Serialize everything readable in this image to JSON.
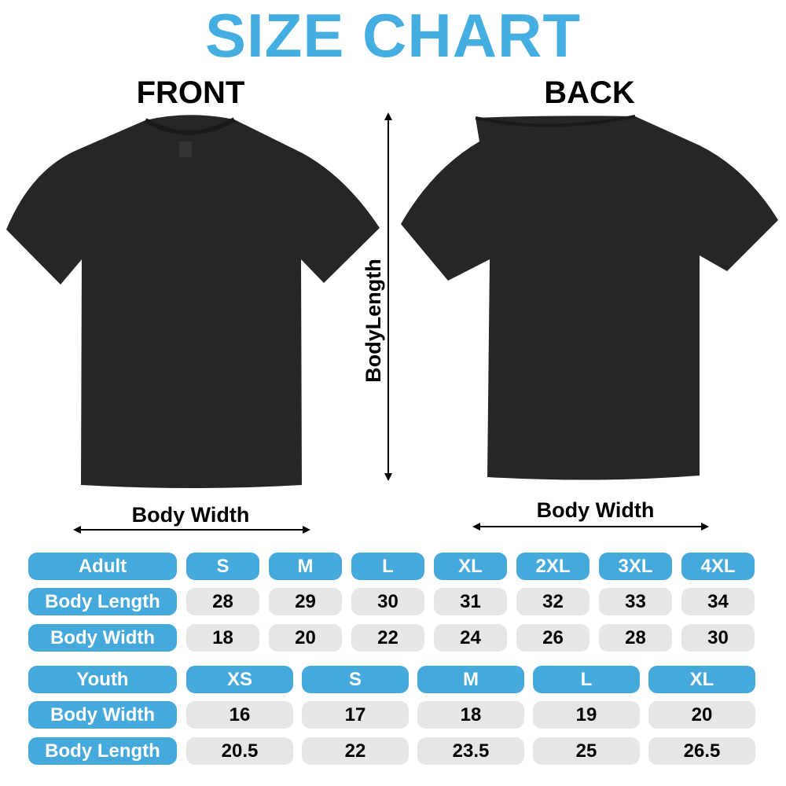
{
  "title": "SIZE CHART",
  "front_label": "FRONT",
  "back_label": "BACK",
  "body_length_label": "BodyLength",
  "front_width_label": "Body Width",
  "back_width_label": "Body Width",
  "colors": {
    "accent": "#45a9dc",
    "cell": "#e6e6e6",
    "shirt": "#262626"
  },
  "adult": {
    "header": "Adult",
    "sizes": [
      "S",
      "M",
      "L",
      "XL",
      "2XL",
      "3XL",
      "4XL"
    ],
    "rows": [
      {
        "label": "Body Length",
        "values": [
          "28",
          "29",
          "30",
          "31",
          "32",
          "33",
          "34"
        ]
      },
      {
        "label": "Body Width",
        "values": [
          "18",
          "20",
          "22",
          "24",
          "26",
          "28",
          "30"
        ]
      }
    ]
  },
  "youth": {
    "header": "Youth",
    "sizes": [
      "XS",
      "S",
      "M",
      "L",
      "XL"
    ],
    "rows": [
      {
        "label": "Body Width",
        "values": [
          "16",
          "17",
          "18",
          "19",
          "20"
        ]
      },
      {
        "label": "Body Length",
        "values": [
          "20.5",
          "22",
          "23.5",
          "25",
          "26.5"
        ]
      }
    ]
  }
}
